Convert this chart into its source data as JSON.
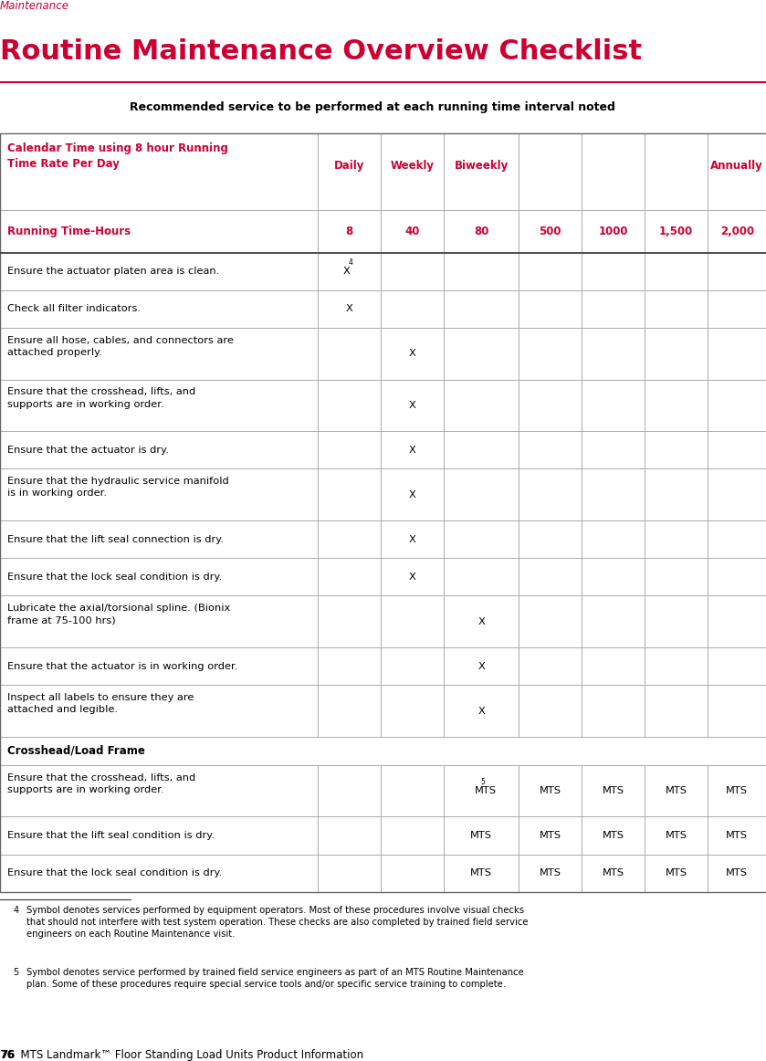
{
  "page_label": "Maintenance",
  "title": "Routine Maintenance Overview Checklist",
  "subtitle": "Recommended service to be performed at each running time interval noted",
  "title_color": "#cc0033",
  "header_color": "#cc0033",
  "page_footer": "76  MTS Landmark™ Floor Standing Load Units Product Information",
  "col_headers": [
    "Calendar Time using 8 hour Running\nTime Rate Per Day",
    "Daily",
    "Weekly",
    "Biweekly",
    "",
    "",
    "",
    "Annually"
  ],
  "col_subheaders": [
    "Running Time-Hours",
    "8",
    "40",
    "80",
    "500",
    "1000",
    "1,500",
    "2,000"
  ],
  "rows": [
    {
      "desc": "Ensure the actuator platen area is clean.",
      "vals": [
        "X⁴",
        "",
        "",
        "",
        "",
        "",
        ""
      ]
    },
    {
      "desc": "Check all filter indicators.",
      "vals": [
        "X",
        "",
        "",
        "",
        "",
        "",
        ""
      ]
    },
    {
      "desc": "Ensure all hose, cables, and connectors are\nattached properly.",
      "vals": [
        "",
        "X",
        "",
        "",
        "",
        "",
        ""
      ]
    },
    {
      "desc": "Ensure that the crosshead, lifts, and\nsupports are in working order.",
      "vals": [
        "",
        "X",
        "",
        "",
        "",
        "",
        ""
      ]
    },
    {
      "desc": "Ensure that the actuator is dry.",
      "vals": [
        "",
        "X",
        "",
        "",
        "",
        "",
        ""
      ]
    },
    {
      "desc": "Ensure that the hydraulic service manifold\nis in working order.",
      "vals": [
        "",
        "X",
        "",
        "",
        "",
        "",
        ""
      ]
    },
    {
      "desc": "Ensure that the lift seal connection is dry.",
      "vals": [
        "",
        "X",
        "",
        "",
        "",
        "",
        ""
      ]
    },
    {
      "desc": "Ensure that the lock seal condition is dry.",
      "vals": [
        "",
        "X",
        "",
        "",
        "",
        "",
        ""
      ]
    },
    {
      "desc": "Lubricate the axial/torsional spline. (Bionix\nframe at 75-100 hrs)",
      "vals": [
        "",
        "",
        "X",
        "",
        "",
        "",
        ""
      ]
    },
    {
      "desc": "Ensure that the actuator is in working order.",
      "vals": [
        "",
        "",
        "X",
        "",
        "",
        "",
        ""
      ]
    },
    {
      "desc": "Inspect all labels to ensure they are\nattached and legible.",
      "vals": [
        "",
        "",
        "X",
        "",
        "",
        "",
        ""
      ]
    },
    {
      "desc": "Crosshead/Load Frame",
      "vals": [
        "",
        "",
        "",
        "",
        "",
        "",
        ""
      ],
      "section": true
    },
    {
      "desc": "Ensure that the crosshead, lifts, and\nsupports are in working order.",
      "vals": [
        "",
        "",
        "MTS⁵",
        "MTS",
        "MTS",
        "MTS",
        "MTS"
      ]
    },
    {
      "desc": "Ensure that the lift seal condition is dry.",
      "vals": [
        "",
        "",
        "MTS",
        "MTS",
        "MTS",
        "MTS",
        "MTS"
      ]
    },
    {
      "desc": "Ensure that the lock seal condition is dry.",
      "vals": [
        "",
        "",
        "MTS",
        "MTS",
        "MTS",
        "MTS",
        "MTS"
      ]
    }
  ],
  "footnotes": [
    "4   Symbol denotes services performed by equipment operators. Most of these procedures involve visual checks\n    that should not interfere with test system operation. These checks are also completed by trained field service\n    engineers on each Routine Maintenance visit.",
    "5   Symbol denotes service performed by trained field service engineers as part of an MTS Routine Maintenance\n    plan. Some of these procedures require special service tools and/or specific service training to complete."
  ],
  "bg_color": "#ffffff",
  "table_border_color": "#999999",
  "header_bg": "#ffffff",
  "row_bg": "#ffffff",
  "section_bold": true
}
